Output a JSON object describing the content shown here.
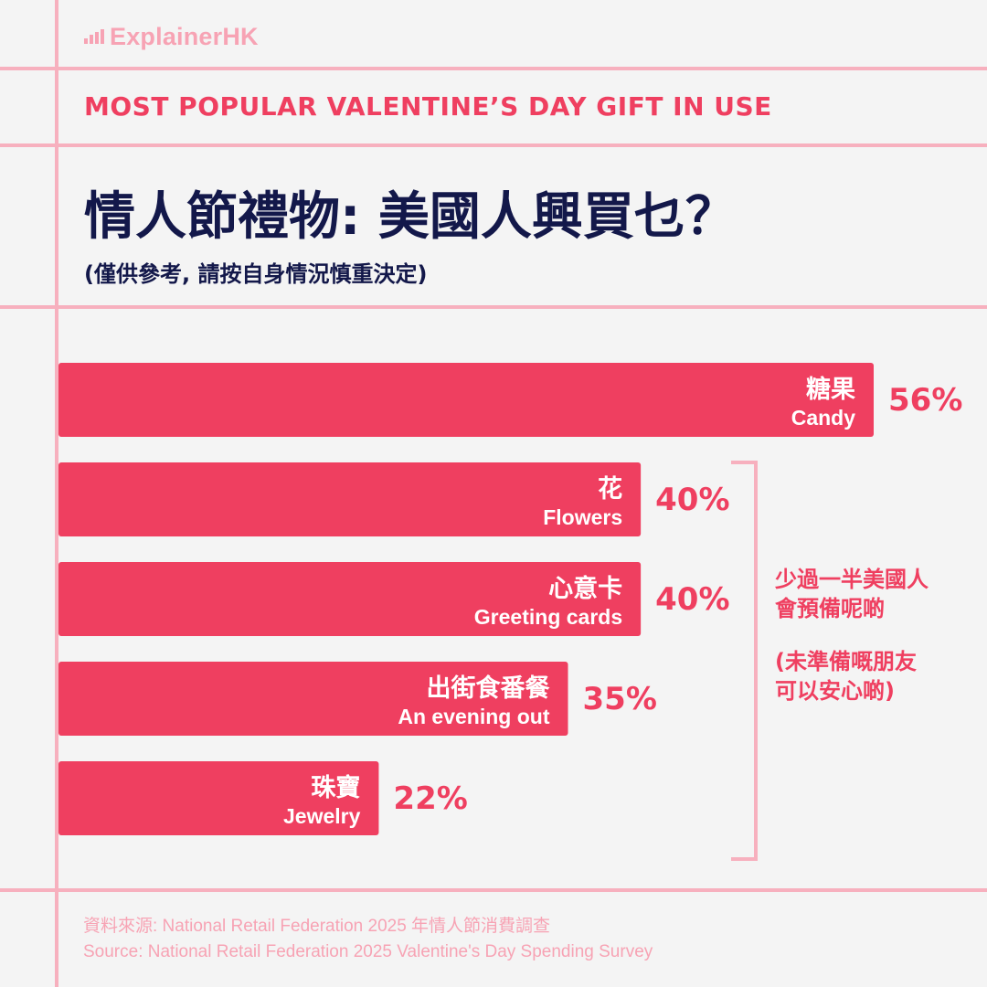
{
  "brand": {
    "name": "ExplainerHK",
    "icon": "bar-chart-icon"
  },
  "header": {
    "subtitle_en": "MOST POPULAR VALENTINE’S DAY GIFT IN USE",
    "title_zh": "情人節禮物: 美國人興買乜？",
    "note_zh": "(僅供參考, 請按自身情況慎重決定)"
  },
  "colors": {
    "bar": "#ef3f60",
    "percent_text": "#ef3f60",
    "title": "#13184a",
    "rule_lines": "#f7b0be",
    "background": "#f4f4f4"
  },
  "chart_data": {
    "type": "bar",
    "orientation": "horizontal",
    "categories": [
      {
        "zh": "糖果",
        "en": "Candy"
      },
      {
        "zh": "花",
        "en": "Flowers"
      },
      {
        "zh": "心意卡",
        "en": "Greeting cards"
      },
      {
        "zh": "出街食番餐",
        "en": "An evening out"
      },
      {
        "zh": "珠寶",
        "en": "Jewelry"
      }
    ],
    "values": [
      56,
      40,
      40,
      35,
      22
    ],
    "value_labels": [
      "56%",
      "40%",
      "40%",
      "35%",
      "22%"
    ],
    "xlim": [
      0,
      56
    ],
    "grid": false,
    "bracket_group": [
      1,
      4
    ],
    "annotation": {
      "line1": "少過一半美國人",
      "line2": "會預備呢啲",
      "line3": "(未準備嘅朋友",
      "line4": "可以安心啲)"
    }
  },
  "source": {
    "zh": "資料來源: National Retail Federation 2025 年情人節消費調查",
    "en": "Source: National Retail Federation 2025 Valentine's Day Spending Survey"
  }
}
